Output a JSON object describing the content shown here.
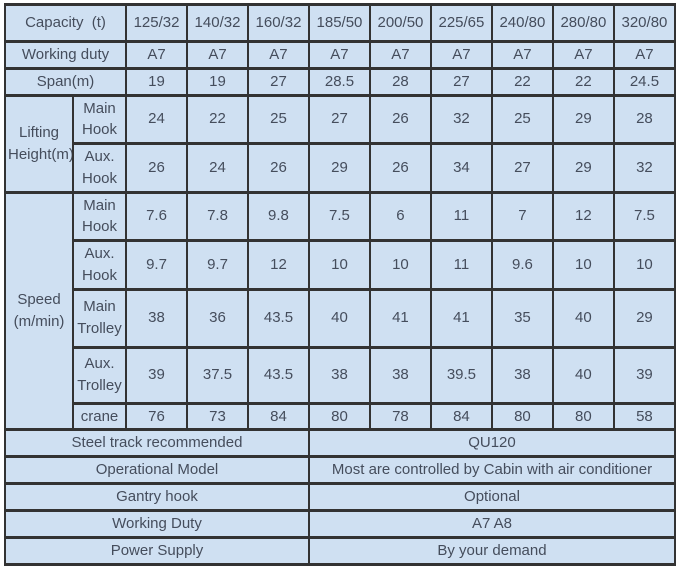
{
  "header": {
    "capacity_label": "Capacity  (t)",
    "capacities": [
      "125/32",
      "140/32",
      "160/32",
      "185/50",
      "200/50",
      "225/65",
      "240/80",
      "280/80",
      "320/80"
    ]
  },
  "rows": {
    "working_duty": {
      "label": "Working duty",
      "values": [
        "A7",
        "A7",
        "A7",
        "A7",
        "A7",
        "A7",
        "A7",
        "A7",
        "A7"
      ]
    },
    "span": {
      "label": "Span(m)",
      "values": [
        19,
        19,
        27,
        28.5,
        28,
        27,
        22,
        22,
        24.5
      ]
    }
  },
  "lifting_height": {
    "group_label": "Lifting Height(m)",
    "main_hook": {
      "label": "Main Hook",
      "values": [
        24,
        22,
        25,
        27,
        26,
        32,
        25,
        29,
        28
      ]
    },
    "aux_hook": {
      "label": "Aux. Hook",
      "values": [
        26,
        24,
        26,
        29,
        26,
        34,
        27,
        29,
        32
      ]
    }
  },
  "speed": {
    "group_label": "Speed (m/min)",
    "main_hook": {
      "label": "Main Hook",
      "values": [
        7.6,
        7.8,
        9.8,
        7.5,
        6,
        11,
        7,
        12,
        7.5
      ]
    },
    "aux_hook": {
      "label": "Aux. Hook",
      "values": [
        9.7,
        9.7,
        12,
        10,
        10,
        11,
        9.6,
        10,
        10
      ]
    },
    "main_trolley": {
      "label": "Main Trolley",
      "values": [
        38,
        36,
        43.5,
        40,
        41,
        41,
        35,
        40,
        29
      ]
    },
    "aux_trolley": {
      "label": "Aux. Trolley",
      "values": [
        39,
        37.5,
        43.5,
        38,
        38,
        39.5,
        38,
        40,
        39
      ]
    },
    "crane": {
      "label": "crane",
      "values": [
        76,
        73,
        84,
        80,
        78,
        84,
        80,
        80,
        58
      ]
    }
  },
  "footer_rows": [
    {
      "label": "Steel track recommended",
      "value": "QU120"
    },
    {
      "label": "Operational Model",
      "value": "Most are controlled by Cabin with air conditioner"
    },
    {
      "label": "Gantry hook",
      "value": "Optional"
    },
    {
      "label": "Working Duty",
      "value": "A7 A8"
    },
    {
      "label": "Power Supply",
      "value": "By your demand"
    }
  ],
  "colors": {
    "cell_background": "#cfe0f2",
    "border": "#333333",
    "text": "#454d5c",
    "page_background": "#ffffff"
  }
}
